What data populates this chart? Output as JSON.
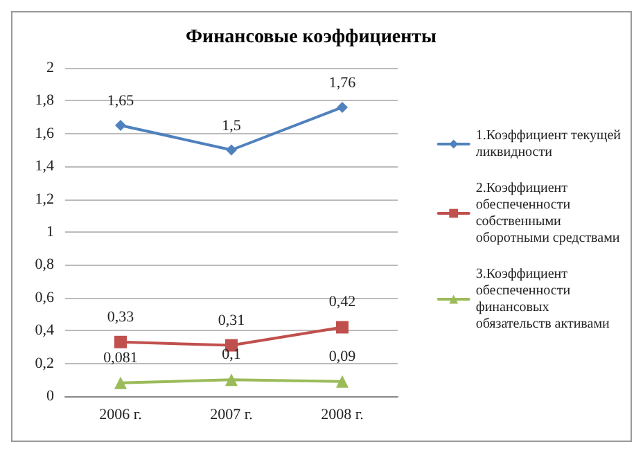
{
  "chart_data": {
    "type": "line",
    "title": "Финансовые коэффициенты",
    "categories": [
      "2006 г.",
      "2007 г.",
      "2008 г."
    ],
    "series": [
      {
        "name": "1.Коэффициент текущей ликвидности",
        "color": "#4f81bd",
        "marker": "diamond",
        "values": [
          1.65,
          1.5,
          1.76
        ],
        "value_labels": [
          "1,65",
          "1,5",
          "1,76"
        ]
      },
      {
        "name": "2.Коэффициент обеспеченности собственными оборотными средствами",
        "color": "#c0504d",
        "marker": "square",
        "values": [
          0.33,
          0.31,
          0.42
        ],
        "value_labels": [
          "0,33",
          "0,31",
          "0,42"
        ]
      },
      {
        "name": "3.Коэффициент обеспеченности финансовых обязательств активами",
        "color": "#9bbb59",
        "marker": "triangle",
        "values": [
          0.081,
          0.1,
          0.09
        ],
        "value_labels": [
          "0,081",
          "0,1",
          "0,09"
        ]
      }
    ],
    "ylim": [
      0,
      2
    ],
    "yticks": [
      0,
      {
        "value": 0.2,
        "label": "0,2"
      },
      {
        "value": 0.4,
        "label": "0,4"
      },
      {
        "value": 0.6,
        "label": "0,6"
      },
      {
        "value": 0.8,
        "label": "0,8"
      },
      1,
      {
        "value": 1.2,
        "label": "1,2"
      },
      {
        "value": 1.4,
        "label": "1,4"
      },
      {
        "value": 1.6,
        "label": "1,6"
      },
      {
        "value": 1.8,
        "label": "1,8"
      },
      2
    ],
    "grid": "y",
    "legend": "right"
  }
}
